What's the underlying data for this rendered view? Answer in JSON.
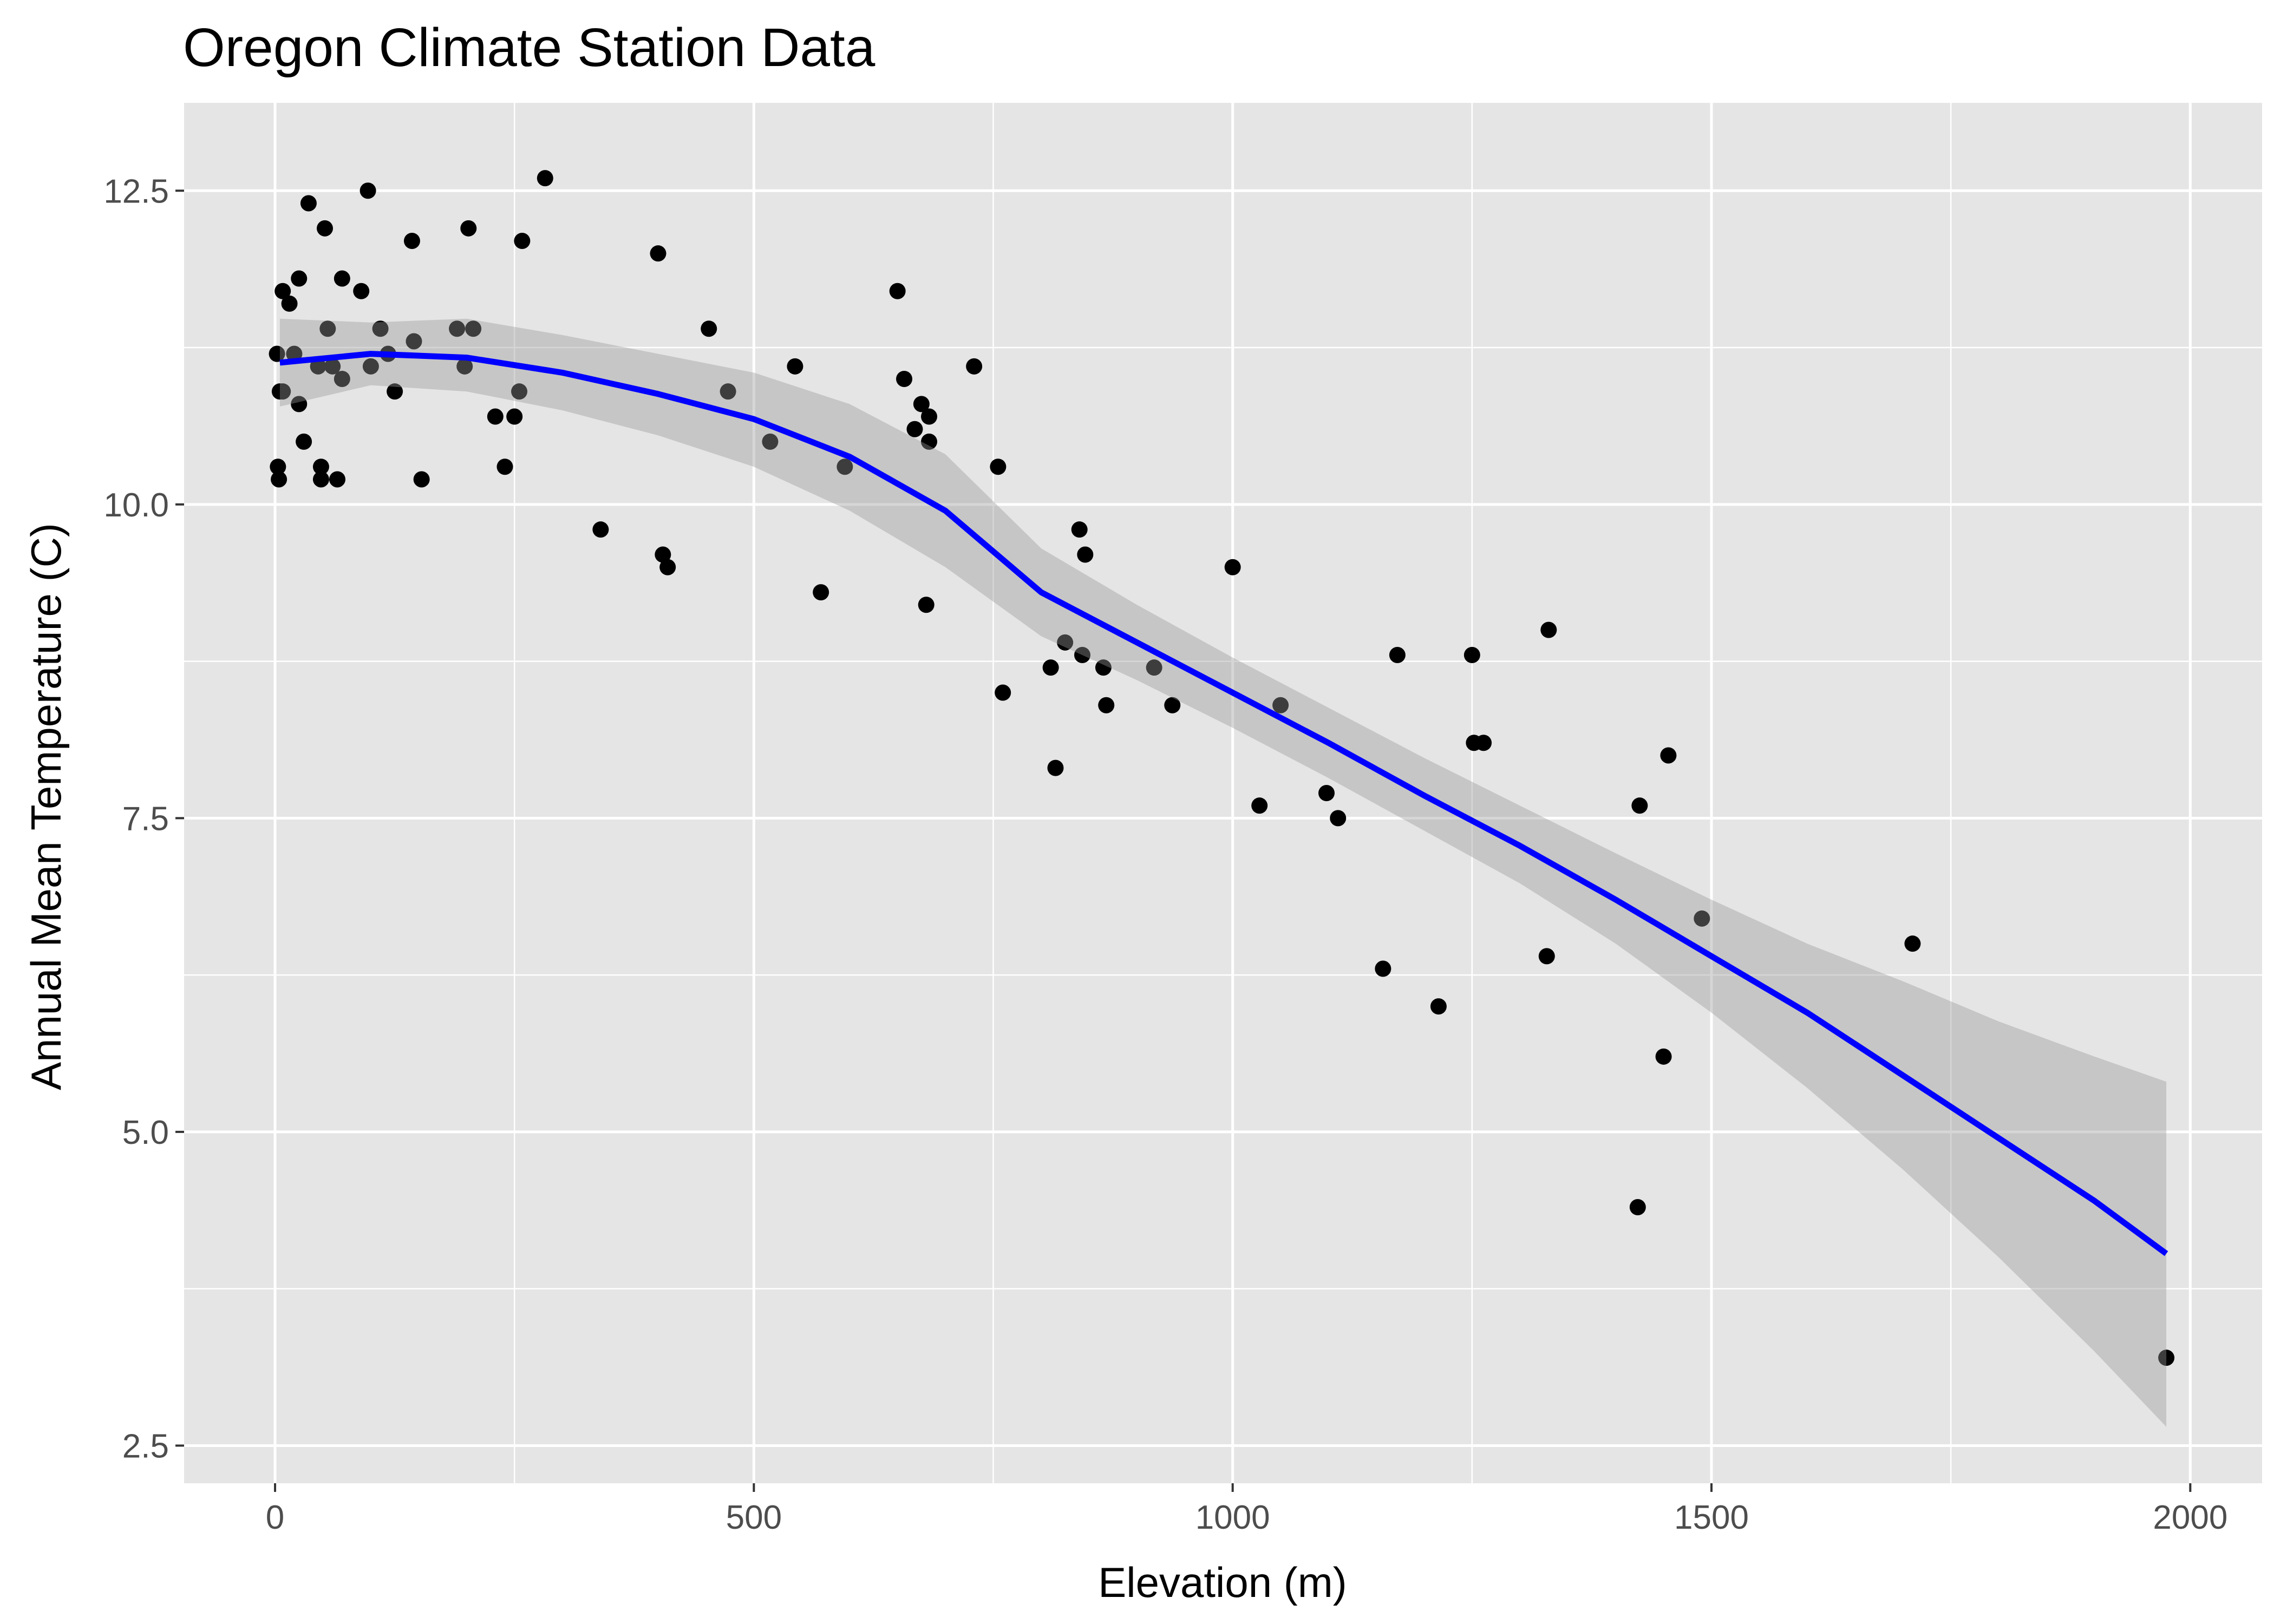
{
  "chart_data": {
    "type": "scatter",
    "title": "Oregon Climate Station Data",
    "xlabel": "Elevation (m)",
    "ylabel": "Annual Mean Temperature (C)",
    "xlim": [
      -95,
      2075
    ],
    "ylim": [
      2.2,
      13.2
    ],
    "x_ticks": [
      0,
      500,
      1000,
      1500,
      2000
    ],
    "x_tick_labels": [
      "0",
      "500",
      "1000",
      "1500",
      "2000"
    ],
    "y_ticks": [
      2.5,
      5.0,
      7.5,
      10.0,
      12.5
    ],
    "y_tick_labels": [
      "2.5",
      "5.0",
      "7.5",
      "10.0",
      "12.5"
    ],
    "grid": true,
    "legend": "none",
    "colors": {
      "panel": "#e5e5e5",
      "grid": "#ffffff",
      "points": "#000000",
      "smooth_line": "#0000ff",
      "ribbon": "#bdbdbd"
    },
    "points": [
      [
        2,
        11.2
      ],
      [
        3,
        10.3
      ],
      [
        4,
        10.2
      ],
      [
        5,
        10.9
      ],
      [
        8,
        11.7
      ],
      [
        8,
        10.9
      ],
      [
        15,
        11.6
      ],
      [
        20,
        11.2
      ],
      [
        25,
        11.8
      ],
      [
        25,
        10.8
      ],
      [
        30,
        10.5
      ],
      [
        35,
        12.4
      ],
      [
        45,
        11.1
      ],
      [
        48,
        10.3
      ],
      [
        48,
        10.2
      ],
      [
        52,
        12.2
      ],
      [
        55,
        11.4
      ],
      [
        60,
        11.1
      ],
      [
        65,
        10.2
      ],
      [
        70,
        11.8
      ],
      [
        70,
        11.0
      ],
      [
        90,
        11.7
      ],
      [
        97,
        12.5
      ],
      [
        100,
        11.1
      ],
      [
        110,
        11.4
      ],
      [
        118,
        11.2
      ],
      [
        125,
        10.9
      ],
      [
        143,
        12.1
      ],
      [
        145,
        11.3
      ],
      [
        153,
        10.2
      ],
      [
        190,
        11.4
      ],
      [
        198,
        11.1
      ],
      [
        202,
        12.2
      ],
      [
        207,
        11.4
      ],
      [
        230,
        10.7
      ],
      [
        240,
        10.3
      ],
      [
        250,
        10.7
      ],
      [
        255,
        10.9
      ],
      [
        258,
        12.1
      ],
      [
        282,
        12.6
      ],
      [
        340,
        9.8
      ],
      [
        400,
        12.0
      ],
      [
        405,
        9.6
      ],
      [
        410,
        9.5
      ],
      [
        453,
        11.4
      ],
      [
        473,
        10.9
      ],
      [
        517,
        10.5
      ],
      [
        543,
        11.1
      ],
      [
        570,
        9.3
      ],
      [
        595,
        10.3
      ],
      [
        650,
        11.7
      ],
      [
        657,
        11.0
      ],
      [
        668,
        10.6
      ],
      [
        675,
        10.8
      ],
      [
        680,
        9.2
      ],
      [
        683,
        10.5
      ],
      [
        683,
        10.7
      ],
      [
        730,
        11.1
      ],
      [
        755,
        10.3
      ],
      [
        760,
        8.5
      ],
      [
        810,
        8.7
      ],
      [
        815,
        7.9
      ],
      [
        825,
        8.9
      ],
      [
        840,
        9.8
      ],
      [
        843,
        8.8
      ],
      [
        846,
        9.6
      ],
      [
        865,
        8.7
      ],
      [
        868,
        8.4
      ],
      [
        918,
        8.7
      ],
      [
        937,
        8.4
      ],
      [
        1000,
        9.5
      ],
      [
        1028,
        7.6
      ],
      [
        1050,
        8.4
      ],
      [
        1098,
        7.7
      ],
      [
        1110,
        7.5
      ],
      [
        1157,
        6.3
      ],
      [
        1172,
        8.8
      ],
      [
        1215,
        6.0
      ],
      [
        1250,
        8.8
      ],
      [
        1252,
        8.1
      ],
      [
        1262,
        8.1
      ],
      [
        1328,
        6.4
      ],
      [
        1330,
        9.0
      ],
      [
        1423,
        4.4
      ],
      [
        1425,
        7.6
      ],
      [
        1450,
        5.6
      ],
      [
        1455,
        8.0
      ],
      [
        1490,
        6.7
      ],
      [
        1710,
        6.5
      ],
      [
        1975,
        3.2
      ]
    ],
    "smooth": {
      "x": [
        5,
        100,
        200,
        300,
        400,
        500,
        600,
        700,
        800,
        900,
        1000,
        1100,
        1200,
        1300,
        1400,
        1500,
        1600,
        1700,
        1800,
        1900,
        1975
      ],
      "y": [
        11.13,
        11.2,
        11.17,
        11.05,
        10.88,
        10.68,
        10.38,
        9.95,
        9.3,
        8.9,
        8.5,
        8.1,
        7.68,
        7.28,
        6.85,
        6.4,
        5.95,
        5.45,
        4.95,
        4.45,
        4.03
      ],
      "lower": [
        10.78,
        10.95,
        10.9,
        10.75,
        10.55,
        10.3,
        9.95,
        9.5,
        8.95,
        8.6,
        8.22,
        7.82,
        7.4,
        6.98,
        6.5,
        5.95,
        5.35,
        4.7,
        4.0,
        3.25,
        2.65
      ],
      "upper": [
        11.48,
        11.45,
        11.48,
        11.35,
        11.2,
        11.05,
        10.8,
        10.4,
        9.65,
        9.2,
        8.78,
        8.38,
        7.98,
        7.6,
        7.22,
        6.85,
        6.5,
        6.2,
        5.88,
        5.6,
        5.4
      ]
    }
  }
}
